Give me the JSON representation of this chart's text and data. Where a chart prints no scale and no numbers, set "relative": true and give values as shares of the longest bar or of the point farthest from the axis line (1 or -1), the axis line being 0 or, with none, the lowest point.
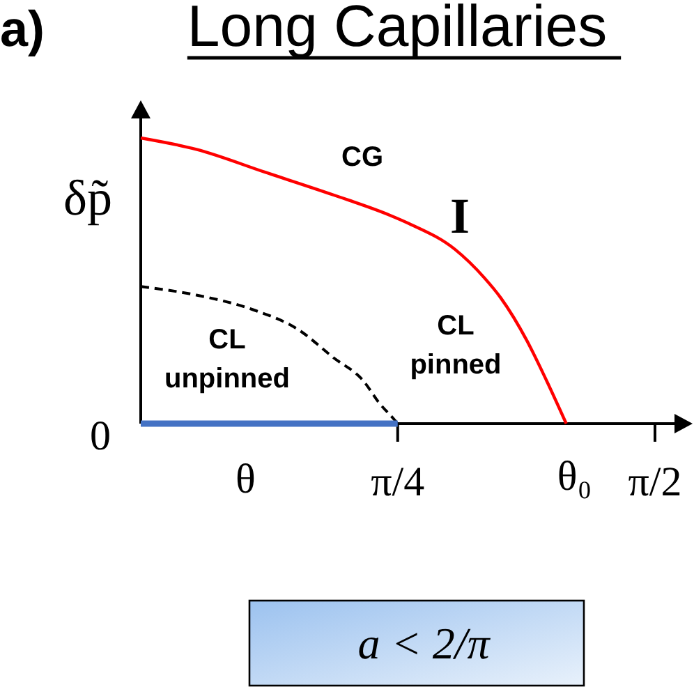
{
  "chart_data": {
    "type": "line",
    "title": "Long Capillaries",
    "xlabel": "θ",
    "ylabel": "δp̃",
    "relative": true,
    "xlim": [
      0,
      1.686
    ],
    "xticks": [
      {
        "value": 0.785,
        "label": "π/4"
      },
      {
        "value": 1.571,
        "label": "π/2"
      }
    ],
    "series": [
      {
        "color": "#ff0000",
        "line_style": "solid",
        "x": [
          0,
          0.17,
          0.38,
          0.59,
          0.76,
          0.82,
          0.96,
          1.05,
          1.1,
          1.18,
          1.24,
          1.3
        ],
        "values": [
          1,
          0.96,
          0.88,
          0.8,
          0.73,
          0.7,
          0.61,
          0.51,
          0.44,
          0.29,
          0.15,
          0
        ]
      },
      {
        "color": "#000000",
        "line_style": "dashed",
        "x": [
          0,
          0.17,
          0.34,
          0.48,
          0.59,
          0.68,
          0.73,
          0.77,
          0.785
        ],
        "values": [
          0.48,
          0.45,
          0.4,
          0.33,
          0.23,
          0.15,
          0.07,
          0.02,
          0
        ]
      },
      {
        "color": "#4472c4",
        "line_style": "solid",
        "x": [
          0,
          0.785
        ],
        "values": [
          0,
          0
        ]
      }
    ],
    "annotations": [
      "a)",
      "CG",
      "I",
      "CL\npinned",
      "CL\nunpinned",
      {
        "text": "0",
        "x": 0,
        "y": 0
      },
      {
        "text": "θ₀",
        "x": 1.3,
        "y": 0
      },
      "a < 2/π"
    ]
  }
}
